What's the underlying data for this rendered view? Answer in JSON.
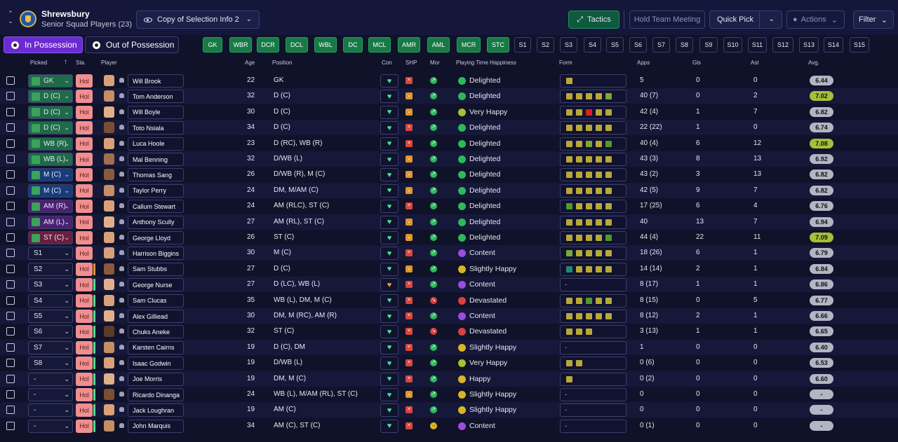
{
  "header": {
    "club_name": "Shrewsbury",
    "squad": "Senior Squad Players (23)",
    "view": "Copy of Selection Info 2",
    "tactics": "Tactics",
    "hold_meeting": "Hold Team Meeting",
    "quick_pick": "Quick Pick",
    "actions": "Actions",
    "filter": "Filter"
  },
  "possession": {
    "in": "In Possession",
    "out": "Out of Possession"
  },
  "position_buttons": [
    "GK",
    "WBR",
    "DCR",
    "DCL",
    "WBL",
    "DC",
    "MCL",
    "AMR",
    "AML",
    "MCR",
    "STC"
  ],
  "sub_buttons": [
    "S1",
    "S2",
    "S3",
    "S4",
    "S5",
    "S6",
    "S7",
    "S8",
    "S9",
    "S10",
    "S11",
    "S12",
    "S13",
    "S14",
    "S15"
  ],
  "columns": {
    "picked": "Picked",
    "sta": "Sta.",
    "player": "Player",
    "age": "Age",
    "position": "Position",
    "con": "Con",
    "shp": "SHP",
    "mor": "Mor",
    "happiness": "Playing Time Happiness",
    "form": "Form",
    "apps": "Apps",
    "gls": "Gls",
    "ast": "Ast",
    "avg": "Avg."
  },
  "players": [
    {
      "picked": "GK",
      "picked_color": "#1f6a49",
      "sta": "Hol",
      "name": "Will Brook",
      "age": "22",
      "position": "GK",
      "con_color": "green",
      "shp": "x",
      "mor": "up",
      "happiness": "Delighted",
      "hap_color": "#2eb85c",
      "form": [
        "#b8a838"
      ],
      "apps": "5",
      "gls": "0",
      "ast": "0",
      "avg": "6.44",
      "avg_hi": false
    },
    {
      "picked": "D (C)",
      "picked_color": "#1f6a49",
      "sta": "Hol",
      "name": "Tom Anderson",
      "age": "32",
      "position": "D (C)",
      "con_color": "green",
      "shp": "v",
      "mor": "up",
      "happiness": "Delighted",
      "hap_color": "#2eb85c",
      "form": [
        "#b8a838",
        "#b8a838",
        "#b8a838",
        "#b8a838",
        "#7aa832"
      ],
      "apps": "40 (7)",
      "gls": "0",
      "ast": "2",
      "avg": "7.02",
      "avg_hi": true
    },
    {
      "picked": "D (C)",
      "picked_color": "#1f6a49",
      "sta": "Hol",
      "name": "Will Boyle",
      "age": "30",
      "position": "D (C)",
      "con_color": "green",
      "shp": "v",
      "mor": "up",
      "happiness": "Very Happy",
      "hap_color": "#a6c232",
      "form": [
        "#b8a838",
        "#b8a838",
        "#d92020",
        "#b8a838",
        "#b8a838"
      ],
      "apps": "42 (4)",
      "gls": "1",
      "ast": "7",
      "avg": "6.82",
      "avg_hi": false
    },
    {
      "picked": "D (C)",
      "picked_color": "#1f6a49",
      "sta": "Hol",
      "name": "Toto Nsiala",
      "age": "34",
      "position": "D (C)",
      "con_color": "green",
      "shp": "x",
      "mor": "up",
      "happiness": "Delighted",
      "hap_color": "#2eb85c",
      "form": [
        "#b8a838",
        "#b8a838",
        "#b8a838",
        "#b8a838",
        "#b8a838"
      ],
      "apps": "22 (22)",
      "gls": "1",
      "ast": "0",
      "avg": "6.74",
      "avg_hi": false
    },
    {
      "picked": "WB (R)",
      "picked_color": "#1f6a49",
      "sta": "Hol",
      "name": "Luca Hoole",
      "age": "23",
      "position": "D (RC), WB (R)",
      "con_color": "green",
      "shp": "x",
      "mor": "up",
      "happiness": "Delighted",
      "hap_color": "#2eb85c",
      "form": [
        "#b8a838",
        "#b8a838",
        "#7aa832",
        "#b8a838",
        "#4e9a2e"
      ],
      "apps": "40 (4)",
      "gls": "6",
      "ast": "12",
      "avg": "7.08",
      "avg_hi": true
    },
    {
      "picked": "WB (L)",
      "picked_color": "#1f6a49",
      "sta": "Hol",
      "name": "Mal Benning",
      "age": "32",
      "position": "D/WB (L)",
      "con_color": "green",
      "shp": "v",
      "mor": "up",
      "happiness": "Delighted",
      "hap_color": "#2eb85c",
      "form": [
        "#b8a838",
        "#b8a838",
        "#b8a838",
        "#b8a838",
        "#b8a838"
      ],
      "apps": "43 (3)",
      "gls": "8",
      "ast": "13",
      "avg": "6.92",
      "avg_hi": false
    },
    {
      "picked": "M (C)",
      "picked_color": "#183c7a",
      "sta": "Hol",
      "name": "Thomas Sang",
      "age": "26",
      "position": "D/WB (R), M (C)",
      "con_color": "green",
      "shp": "v",
      "mor": "up",
      "happiness": "Delighted",
      "hap_color": "#2eb85c",
      "form": [
        "#b8a838",
        "#b8a838",
        "#b8a838",
        "#b8a838",
        "#b8a838"
      ],
      "apps": "43 (2)",
      "gls": "3",
      "ast": "13",
      "avg": "6.82",
      "avg_hi": false
    },
    {
      "picked": "M (C)",
      "picked_color": "#183c7a",
      "sta": "Hol",
      "name": "Taylor Perry",
      "age": "24",
      "position": "DM, M/AM (C)",
      "con_color": "green",
      "shp": "v",
      "mor": "up",
      "happiness": "Delighted",
      "hap_color": "#2eb85c",
      "form": [
        "#b8a838",
        "#b8a838",
        "#b8a838",
        "#b8a838",
        "#b8a838"
      ],
      "apps": "42 (5)",
      "gls": "9",
      "ast": "7",
      "avg": "6.82",
      "avg_hi": false
    },
    {
      "picked": "AM (R)",
      "picked_color": "#4b2072",
      "sta": "Hol",
      "name": "Callum Stewart",
      "age": "24",
      "position": "AM (RLC), ST (C)",
      "con_color": "green",
      "shp": "x",
      "mor": "up",
      "happiness": "Delighted",
      "hap_color": "#2eb85c",
      "form": [
        "#4e9a2e",
        "#b8a838",
        "#b8a838",
        "#b8a838",
        "#b8a838"
      ],
      "apps": "17 (25)",
      "gls": "6",
      "ast": "4",
      "avg": "6.76",
      "avg_hi": false
    },
    {
      "picked": "AM (L)",
      "picked_color": "#4b2072",
      "sta": "Hol",
      "name": "Anthony Scully",
      "age": "27",
      "position": "AM (RL), ST (C)",
      "con_color": "green",
      "shp": "v",
      "mor": "up",
      "happiness": "Delighted",
      "hap_color": "#2eb85c",
      "form": [
        "#b8a838",
        "#b8a838",
        "#b8a838",
        "#b8a838",
        "#b8a838"
      ],
      "apps": "40",
      "gls": "13",
      "ast": "7",
      "avg": "6.94",
      "avg_hi": false
    },
    {
      "picked": "ST (C)",
      "picked_color": "#6a1f3f",
      "sta": "Hol",
      "name": "George Lloyd",
      "age": "26",
      "position": "ST (C)",
      "con_color": "green",
      "shp": "v",
      "mor": "up",
      "happiness": "Delighted",
      "hap_color": "#2eb85c",
      "form": [
        "#b8a838",
        "#b8a838",
        "#b8a838",
        "#b8a838",
        "#4e9a2e"
      ],
      "apps": "44 (4)",
      "gls": "22",
      "ast": "11",
      "avg": "7.09",
      "avg_hi": true
    },
    {
      "picked": "S1",
      "picked_color": "",
      "sta": "Hol",
      "name": "Harrison Biggins",
      "age": "30",
      "position": "M (C)",
      "con_color": "green",
      "shp": "x",
      "mor": "up",
      "happiness": "Content",
      "hap_color": "#9b4de0",
      "form": [
        "#7aa832",
        "#b8a838",
        "#b8a838",
        "#b8a838",
        "#b8a838"
      ],
      "apps": "18 (26)",
      "gls": "6",
      "ast": "1",
      "avg": "6.79",
      "avg_hi": false
    },
    {
      "picked": "S2",
      "picked_color": "",
      "sta": "Hol",
      "name": "Sam Stubbs",
      "age": "27",
      "position": "D (C)",
      "con_color": "green",
      "shp": "v",
      "mor": "up",
      "happiness": "Slightly Happy",
      "hap_color": "#d9b526",
      "form": [
        "#1f8a6a",
        "#b8a838",
        "#b8a838",
        "#b8a838",
        "#b8a838"
      ],
      "apps": "14 (14)",
      "gls": "2",
      "ast": "1",
      "avg": "6.84",
      "avg_hi": false
    },
    {
      "picked": "S3",
      "picked_color": "",
      "sta": "Hol",
      "name": "George Nurse",
      "age": "27",
      "position": "D (LC), WB (L)",
      "con_color": "orange",
      "shp": "x",
      "mor": "up",
      "happiness": "Content",
      "hap_color": "#9b4de0",
      "form": [],
      "apps": "8 (17)",
      "gls": "1",
      "ast": "1",
      "avg": "6.86",
      "avg_hi": false
    },
    {
      "picked": "S4",
      "picked_color": "",
      "sta": "Hol",
      "name": "Sam Clucas",
      "age": "35",
      "position": "WB (L), DM, M (C)",
      "con_color": "green",
      "shp": "x",
      "mor": "down",
      "happiness": "Devastated",
      "hap_color": "#d94040",
      "form": [
        "#b8a838",
        "#b8a838",
        "#4e9a2e",
        "#b8a838",
        "#b8a838"
      ],
      "apps": "8 (15)",
      "gls": "0",
      "ast": "5",
      "avg": "6.77",
      "avg_hi": false
    },
    {
      "picked": "S5",
      "picked_color": "",
      "sta": "Hol",
      "name": "Alex Gilliead",
      "age": "30",
      "position": "DM, M (RC), AM (R)",
      "con_color": "green",
      "shp": "x",
      "mor": "up",
      "happiness": "Content",
      "hap_color": "#9b4de0",
      "form": [
        "#b8a838",
        "#b8a838",
        "#b8a838",
        "#b8a838",
        "#b8a838"
      ],
      "apps": "8 (12)",
      "gls": "2",
      "ast": "1",
      "avg": "6.66",
      "avg_hi": false
    },
    {
      "picked": "S6",
      "picked_color": "",
      "sta": "Hol",
      "name": "Chuks Aneke",
      "age": "32",
      "position": "ST (C)",
      "con_color": "green",
      "shp": "x",
      "mor": "down",
      "happiness": "Devastated",
      "hap_color": "#d94040",
      "form": [
        "#b8a838",
        "#b8a838",
        "#b8a838"
      ],
      "apps": "3 (13)",
      "gls": "1",
      "ast": "1",
      "avg": "6.65",
      "avg_hi": false
    },
    {
      "picked": "S7",
      "picked_color": "",
      "sta": "Hol",
      "name": "Karsten Cairns",
      "age": "19",
      "position": "D (C), DM",
      "con_color": "green",
      "shp": "x",
      "mor": "up",
      "happiness": "Slightly Happy",
      "hap_color": "#d9b526",
      "form": [],
      "apps": "1",
      "gls": "0",
      "ast": "0",
      "avg": "6.40",
      "avg_hi": false
    },
    {
      "picked": "S8",
      "picked_color": "",
      "sta": "Hol",
      "name": "Isaac Godwin",
      "age": "19",
      "position": "D/WB (L)",
      "con_color": "green",
      "shp": "x",
      "mor": "up",
      "happiness": "Very Happy",
      "hap_color": "#a6c232",
      "form": [
        "#b8a838",
        "#b8a838"
      ],
      "apps": "0 (6)",
      "gls": "0",
      "ast": "0",
      "avg": "6.53",
      "avg_hi": false
    },
    {
      "picked": "-",
      "picked_color": "",
      "sta": "Hol",
      "name": "Joe Morris",
      "age": "19",
      "position": "DM, M (C)",
      "con_color": "green",
      "shp": "x",
      "mor": "up",
      "happiness": "Happy",
      "hap_color": "#d9b526",
      "form": [
        "#b8a838"
      ],
      "apps": "0 (2)",
      "gls": "0",
      "ast": "0",
      "avg": "6.60",
      "avg_hi": false
    },
    {
      "picked": "-",
      "picked_color": "",
      "sta": "Hol",
      "name": "Ricardo Dinanga",
      "age": "24",
      "position": "WB (L), M/AM (RL), ST (C)",
      "con_color": "green",
      "shp": "v",
      "mor": "up",
      "happiness": "Slightly Happy",
      "hap_color": "#d9b526",
      "form": [],
      "apps": "0",
      "gls": "0",
      "ast": "0",
      "avg": "-",
      "avg_hi": false
    },
    {
      "picked": "-",
      "picked_color": "",
      "sta": "Hol",
      "name": "Jack Loughran",
      "age": "19",
      "position": "AM (C)",
      "con_color": "green",
      "shp": "x",
      "mor": "up",
      "happiness": "Slightly Happy",
      "hap_color": "#d9b526",
      "form": [],
      "apps": "0",
      "gls": "0",
      "ast": "0",
      "avg": "-",
      "avg_hi": false
    },
    {
      "picked": "-",
      "picked_color": "",
      "sta": "Hol",
      "name": "John Marquis",
      "age": "34",
      "position": "AM (C), ST (C)",
      "con_color": "green",
      "shp": "x",
      "mor": "flat",
      "happiness": "Content",
      "hap_color": "#9b4de0",
      "form": [],
      "apps": "0 (1)",
      "gls": "0",
      "ast": "0",
      "avg": "-",
      "avg_hi": false
    }
  ],
  "form_empty": "-"
}
